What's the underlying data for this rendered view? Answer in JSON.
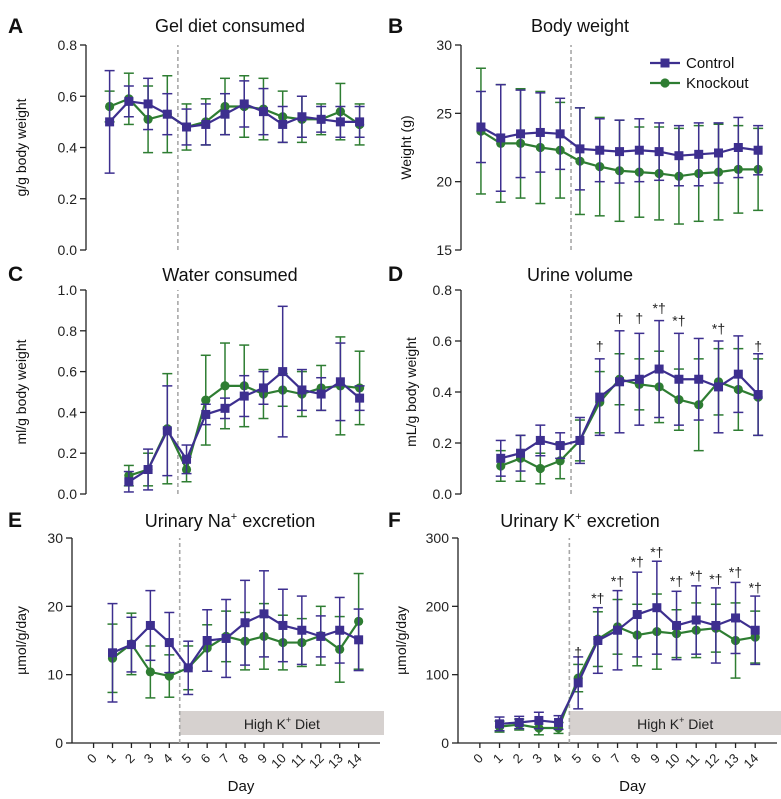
{
  "legend": {
    "control": "Control",
    "knockout": "Knockout"
  },
  "colors": {
    "control": "#3d2f8f",
    "knockout": "#2e7d32",
    "divider": "#a8a8a8",
    "diet_bar": "#d6d1cf"
  },
  "diet_label_prefix": "High K",
  "diet_label_sup": "+",
  "diet_label_suffix": " Diet",
  "chart_data": [
    {
      "id": "A",
      "letter": "A",
      "title": "Gel diet consumed",
      "type": "line",
      "ylabel": "g/g body weight",
      "xlabel": "",
      "ylim": [
        0,
        0.8
      ],
      "yticks": [
        0.0,
        0.2,
        0.4,
        0.6,
        0.8
      ],
      "ytick_labels": [
        "0.0",
        "0.2",
        "0.4",
        "0.6",
        "0.8"
      ],
      "xlim": [
        0.5,
        14
      ],
      "x_ticks": [],
      "x_tick_labels": [],
      "series": [
        {
          "name": "Control",
          "x": [
            1,
            2,
            3,
            4,
            5,
            6,
            7,
            8,
            9,
            10,
            11,
            12,
            13,
            14
          ],
          "y": [
            0.5,
            0.58,
            0.57,
            0.53,
            0.48,
            0.49,
            0.53,
            0.57,
            0.54,
            0.49,
            0.52,
            0.51,
            0.5,
            0.5
          ],
          "err": [
            0.2,
            0.06,
            0.1,
            0.08,
            0.07,
            0.08,
            0.08,
            0.09,
            0.09,
            0.07,
            0.08,
            0.05,
            0.06,
            0.06
          ]
        },
        {
          "name": "Knockout",
          "x": [
            1,
            2,
            3,
            4,
            5,
            6,
            7,
            8,
            9,
            10,
            11,
            12,
            13,
            14
          ],
          "y": [
            0.56,
            0.59,
            0.51,
            0.53,
            0.48,
            0.5,
            0.56,
            0.56,
            0.55,
            0.52,
            0.51,
            0.51,
            0.54,
            0.49
          ],
          "err": [
            0.06,
            0.1,
            0.13,
            0.15,
            0.09,
            0.09,
            0.11,
            0.12,
            0.12,
            0.1,
            0.09,
            0.06,
            0.11,
            0.08
          ]
        }
      ],
      "annotations": [],
      "diet_bar": false
    },
    {
      "id": "B",
      "letter": "B",
      "title": "Body weight",
      "type": "line",
      "ylabel": "Weight (g)",
      "xlabel": "",
      "ylim": [
        15,
        30
      ],
      "yticks": [
        15,
        20,
        25,
        30
      ],
      "ytick_labels": [
        "15",
        "20",
        "25",
        "30"
      ],
      "xlim": [
        0,
        14
      ],
      "x_ticks": [],
      "x_tick_labels": [],
      "series": [
        {
          "name": "Control",
          "x": [
            0,
            1,
            2,
            3,
            4,
            5,
            6,
            7,
            8,
            9,
            10,
            11,
            12,
            13,
            14
          ],
          "y": [
            24.0,
            23.2,
            23.5,
            23.6,
            23.5,
            22.4,
            22.3,
            22.2,
            22.3,
            22.2,
            21.9,
            22.0,
            22.1,
            22.5,
            22.3
          ],
          "err": [
            2.6,
            3.9,
            3.2,
            2.9,
            2.6,
            3.0,
            2.3,
            2.3,
            2.3,
            2.1,
            2.2,
            2.3,
            2.2,
            2.2,
            1.8
          ]
        },
        {
          "name": "Knockout",
          "x": [
            0,
            1,
            2,
            3,
            4,
            5,
            6,
            7,
            8,
            9,
            10,
            11,
            12,
            13,
            14
          ],
          "y": [
            23.7,
            22.8,
            22.8,
            22.5,
            22.3,
            21.5,
            21.1,
            20.8,
            20.7,
            20.6,
            20.4,
            20.6,
            20.7,
            20.9,
            20.9
          ],
          "err": [
            4.6,
            4.3,
            4.0,
            4.1,
            3.5,
            3.9,
            3.6,
            3.7,
            3.3,
            3.4,
            3.5,
            3.5,
            3.5,
            3.2,
            3.0
          ]
        }
      ],
      "annotations": [],
      "diet_bar": false,
      "show_legend": true
    },
    {
      "id": "C",
      "letter": "C",
      "title": "Water consumed",
      "type": "line",
      "ylabel": "ml/g body weight",
      "xlabel": "",
      "ylim": [
        0,
        1.0
      ],
      "yticks": [
        0.0,
        0.2,
        0.4,
        0.6,
        0.8,
        1.0
      ],
      "ytick_labels": [
        "0.0",
        "0.2",
        "0.4",
        "0.6",
        "0.8",
        "1.0"
      ],
      "xlim": [
        0.5,
        14
      ],
      "x_ticks": [],
      "x_tick_labels": [],
      "series": [
        {
          "name": "Control",
          "x": [
            2,
            3,
            4,
            5,
            6,
            7,
            8,
            9,
            10,
            11,
            12,
            13,
            14
          ],
          "y": [
            0.06,
            0.12,
            0.31,
            0.17,
            0.39,
            0.42,
            0.48,
            0.52,
            0.6,
            0.51,
            0.49,
            0.55,
            0.47
          ],
          "err": [
            0.05,
            0.1,
            0.22,
            0.07,
            0.05,
            0.05,
            0.1,
            0.08,
            0.32,
            0.1,
            0.08,
            0.19,
            0.06
          ]
        },
        {
          "name": "Knockout",
          "x": [
            2,
            3,
            4,
            5,
            6,
            7,
            8,
            9,
            10,
            11,
            12,
            13,
            14
          ],
          "y": [
            0.09,
            0.12,
            0.32,
            0.12,
            0.46,
            0.53,
            0.53,
            0.49,
            0.51,
            0.49,
            0.52,
            0.53,
            0.52
          ],
          "err": [
            0.05,
            0.08,
            0.27,
            0.06,
            0.22,
            0.21,
            0.2,
            0.12,
            0.08,
            0.11,
            0.11,
            0.24,
            0.18
          ]
        }
      ],
      "annotations": [],
      "diet_bar": false
    },
    {
      "id": "D",
      "letter": "D",
      "title": "Urine volume",
      "type": "line",
      "ylabel": "mL/g body weight",
      "xlabel": "",
      "ylim": [
        0,
        0.8
      ],
      "yticks": [
        0.0,
        0.2,
        0.4,
        0.6,
        0.8
      ],
      "ytick_labels": [
        "0.0",
        "0.2",
        "0.4",
        "0.6",
        "0.8"
      ],
      "xlim": [
        0,
        14
      ],
      "x_ticks": [],
      "x_tick_labels": [],
      "series": [
        {
          "name": "Control",
          "x": [
            1,
            2,
            3,
            4,
            5,
            6,
            7,
            8,
            9,
            10,
            11,
            12,
            13,
            14
          ],
          "y": [
            0.14,
            0.16,
            0.21,
            0.19,
            0.21,
            0.38,
            0.44,
            0.45,
            0.49,
            0.45,
            0.45,
            0.42,
            0.47,
            0.39
          ],
          "err": [
            0.07,
            0.07,
            0.06,
            0.05,
            0.09,
            0.15,
            0.2,
            0.18,
            0.19,
            0.18,
            0.16,
            0.18,
            0.15,
            0.16
          ]
        },
        {
          "name": "Knockout",
          "x": [
            1,
            2,
            3,
            4,
            5,
            6,
            7,
            8,
            9,
            10,
            11,
            12,
            13,
            14
          ],
          "y": [
            0.11,
            0.14,
            0.1,
            0.13,
            0.21,
            0.36,
            0.45,
            0.43,
            0.42,
            0.37,
            0.35,
            0.44,
            0.41,
            0.38
          ],
          "err": [
            0.06,
            0.09,
            0.06,
            0.07,
            0.08,
            0.12,
            0.1,
            0.1,
            0.14,
            0.12,
            0.18,
            0.13,
            0.16,
            0.15
          ]
        }
      ],
      "annotations": [
        {
          "x": 6,
          "y": 0.56,
          "text": "†"
        },
        {
          "x": 7,
          "y": 0.67,
          "text": "†"
        },
        {
          "x": 8,
          "y": 0.67,
          "text": "†"
        },
        {
          "x": 9,
          "y": 0.71,
          "text": "*†"
        },
        {
          "x": 10,
          "y": 0.66,
          "text": "*†"
        },
        {
          "x": 12,
          "y": 0.63,
          "text": "*†"
        },
        {
          "x": 14,
          "y": 0.56,
          "text": "†"
        }
      ],
      "diet_bar": false
    },
    {
      "id": "E",
      "letter": "E",
      "title_prefix": "Urinary Na",
      "title_sup": "+",
      "title_suffix": " excretion",
      "type": "line",
      "ylabel": "µmol/g/day",
      "xlabel": "Day",
      "ylim": [
        0,
        30
      ],
      "yticks": [
        0,
        10,
        20,
        30
      ],
      "ytick_labels": [
        "0",
        "10",
        "20",
        "30"
      ],
      "xlim": [
        0,
        14
      ],
      "x_ticks": [
        0,
        1,
        2,
        3,
        4,
        5,
        6,
        7,
        8,
        9,
        10,
        11,
        12,
        13,
        14
      ],
      "x_tick_labels": [
        "0",
        "1",
        "2",
        "3",
        "4",
        "5",
        "6",
        "7",
        "8",
        "9",
        "10",
        "11",
        "12",
        "13",
        "14"
      ],
      "series": [
        {
          "name": "Control",
          "x": [
            1,
            2,
            3,
            4,
            5,
            6,
            7,
            8,
            9,
            10,
            11,
            12,
            13,
            14
          ],
          "y": [
            13.2,
            14.4,
            17.2,
            14.7,
            11.0,
            15.0,
            15.3,
            17.6,
            18.9,
            17.2,
            16.5,
            15.6,
            16.5,
            15.1
          ],
          "err": [
            7.2,
            4.0,
            5.1,
            4.4,
            3.9,
            4.5,
            5.7,
            6.2,
            6.3,
            5.3,
            5.0,
            3.0,
            4.8,
            4.5
          ]
        },
        {
          "name": "Knockout",
          "x": [
            1,
            2,
            3,
            4,
            5,
            6,
            7,
            8,
            9,
            10,
            11,
            12,
            13,
            14
          ],
          "y": [
            12.4,
            14.5,
            10.4,
            9.8,
            11.0,
            13.9,
            15.6,
            14.9,
            15.6,
            14.7,
            14.7,
            15.7,
            13.7,
            17.8
          ],
          "err": [
            5.0,
            4.5,
            3.8,
            3.1,
            3.2,
            3.4,
            3.7,
            4.2,
            4.8,
            4.0,
            3.5,
            4.3,
            4.8,
            7.0
          ]
        }
      ],
      "annotations": [],
      "diet_bar": true
    },
    {
      "id": "F",
      "letter": "F",
      "title_prefix": "Urinary K",
      "title_sup": "+",
      "title_suffix": " excretion",
      "type": "line",
      "ylabel": "µmol/g/day",
      "xlabel": "Day",
      "ylim": [
        0,
        300
      ],
      "yticks": [
        0,
        100,
        200,
        300
      ],
      "ytick_labels": [
        "0",
        "100",
        "200",
        "300"
      ],
      "xlim": [
        0,
        14
      ],
      "x_ticks": [
        0,
        1,
        2,
        3,
        4,
        5,
        6,
        7,
        8,
        9,
        10,
        11,
        12,
        13,
        14
      ],
      "x_tick_labels": [
        "0",
        "1",
        "2",
        "3",
        "4",
        "5",
        "6",
        "7",
        "8",
        "9",
        "10",
        "11",
        "12",
        "13",
        "14"
      ],
      "series": [
        {
          "name": "Control",
          "x": [
            1,
            2,
            3,
            4,
            5,
            6,
            7,
            8,
            9,
            10,
            11,
            12,
            13,
            14
          ],
          "y": [
            28,
            30,
            33,
            30,
            88,
            150,
            165,
            188,
            198,
            172,
            180,
            172,
            183,
            165
          ],
          "err": [
            10,
            9,
            12,
            10,
            38,
            48,
            58,
            62,
            68,
            50,
            50,
            55,
            52,
            50
          ]
        },
        {
          "name": "Knockout",
          "x": [
            1,
            2,
            3,
            4,
            5,
            6,
            7,
            8,
            9,
            10,
            11,
            12,
            13,
            14
          ],
          "y": [
            24,
            27,
            22,
            22,
            95,
            152,
            170,
            158,
            163,
            160,
            165,
            168,
            150,
            155
          ],
          "err": [
            8,
            8,
            10,
            8,
            20,
            40,
            40,
            45,
            55,
            35,
            40,
            35,
            55,
            38
          ]
        }
      ],
      "annotations": [
        {
          "x": 5,
          "y": 126,
          "text": "†"
        },
        {
          "x": 6,
          "y": 205,
          "text": "*†"
        },
        {
          "x": 7,
          "y": 230,
          "text": "*†"
        },
        {
          "x": 8,
          "y": 258,
          "text": "*†"
        },
        {
          "x": 9,
          "y": 272,
          "text": "*†"
        },
        {
          "x": 10,
          "y": 230,
          "text": "*†"
        },
        {
          "x": 11,
          "y": 238,
          "text": "*†"
        },
        {
          "x": 12,
          "y": 233,
          "text": "*†"
        },
        {
          "x": 13,
          "y": 243,
          "text": "*†"
        },
        {
          "x": 14,
          "y": 220,
          "text": "*†"
        }
      ],
      "diet_bar": true
    }
  ]
}
